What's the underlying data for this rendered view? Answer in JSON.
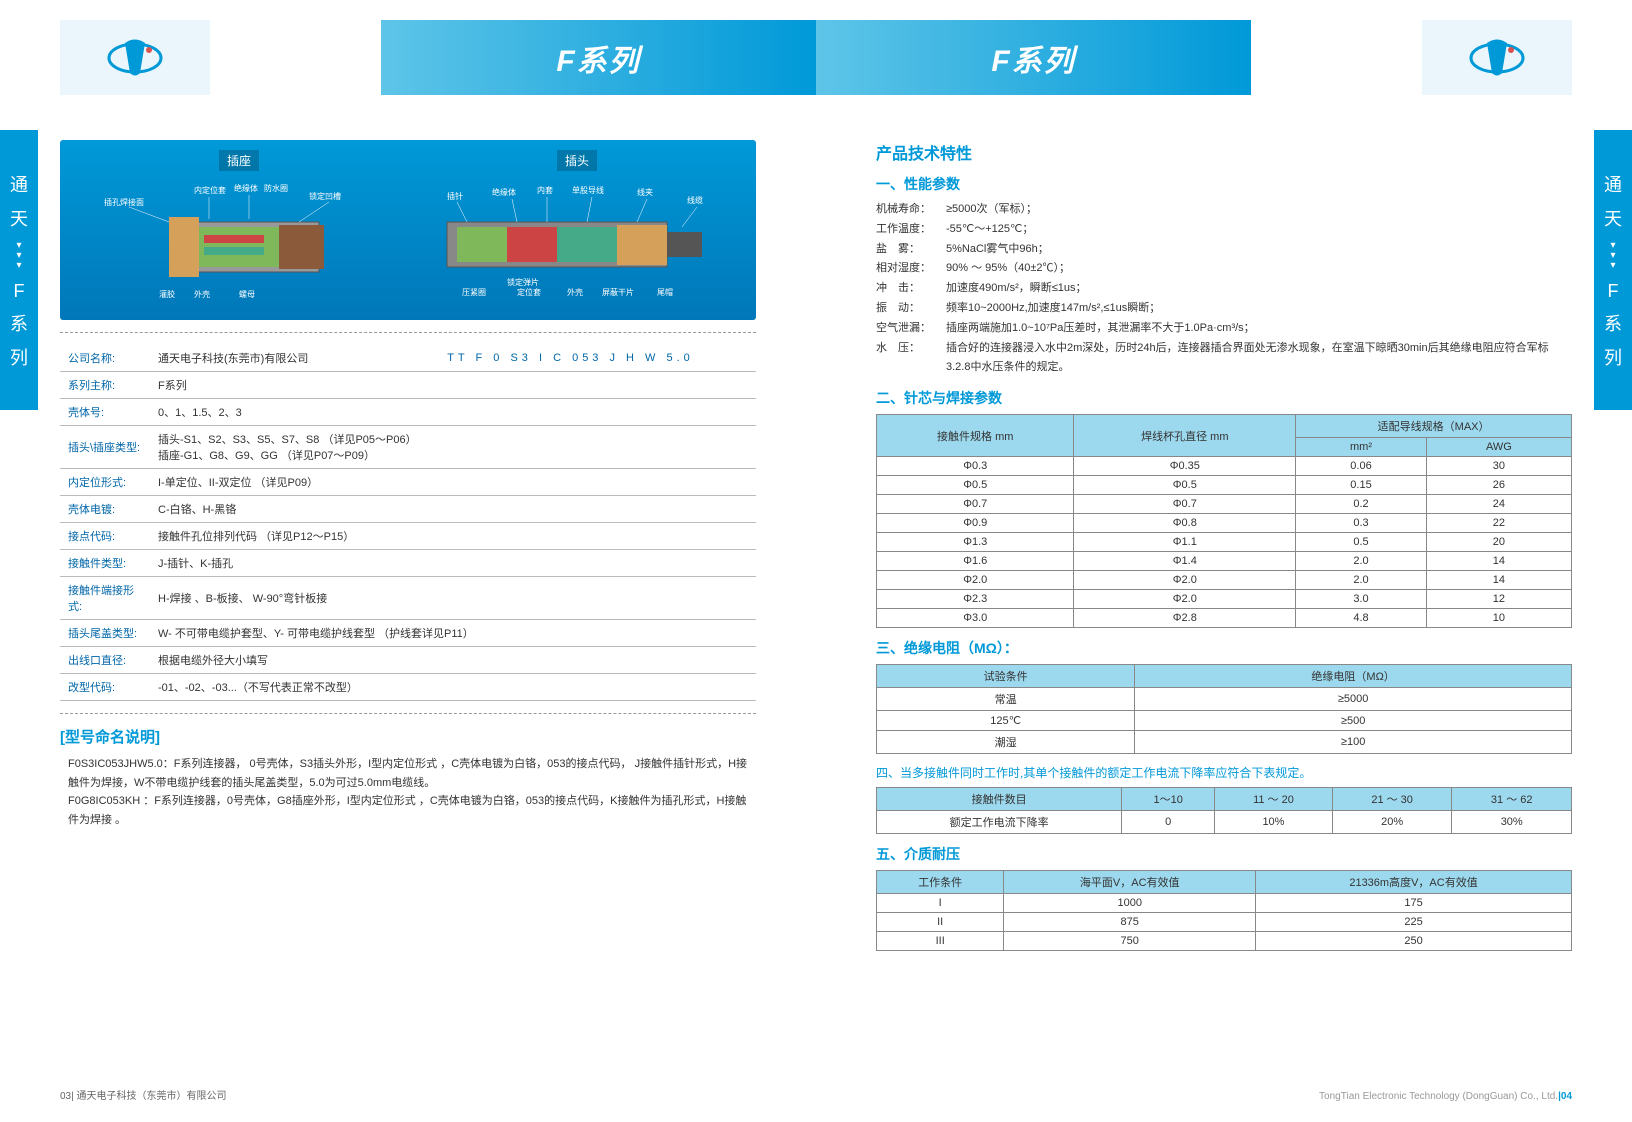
{
  "header": {
    "title_left": "F系列",
    "title_right": "F系列"
  },
  "sidebar": {
    "line1": "通",
    "line2": "天",
    "line3": "F",
    "line4": "系",
    "line5": "列"
  },
  "diagram": {
    "socket_label": "插座",
    "plug_label": "插头",
    "socket_parts": [
      "插孔焊接面",
      "内定位套",
      "绝缘体",
      "防水圈",
      "锁定凹槽",
      "灌胶",
      "外壳",
      "螺母"
    ],
    "plug_parts": [
      "插针",
      "绝缘体",
      "内套",
      "单股导线",
      "线夹",
      "线缆",
      "压紧圈",
      "定位套",
      "外壳",
      "锁定弹片",
      "屏蔽干片",
      "尾帽"
    ]
  },
  "code_bar": "TT  F  0  S3  I   C 053  J   H  W  5.0",
  "spec_rows": [
    {
      "label": "公司名称:",
      "value": "通天电子科技(东莞市)有限公司"
    },
    {
      "label": "系列主称:",
      "value": "F系列"
    },
    {
      "label": "壳体号:",
      "value": "0、1、1.5、2、3"
    },
    {
      "label": "插头\\插座类型:",
      "value": "插头-S1、S2、S3、S5、S7、S8 （详见P05～P06）\n插座-G1、G8、G9、GG （详见P07～P09）"
    },
    {
      "label": "内定位形式:",
      "value": "I-单定位、II-双定位 （详见P09）"
    },
    {
      "label": "壳体电镀:",
      "value": "C-白铬、H-黑铬"
    },
    {
      "label": "接点代码:",
      "value": "接触件孔位排列代码 （详见P12～P15）"
    },
    {
      "label": "接触件类型:",
      "value": "J-插针、K-插孔"
    },
    {
      "label": "接触件端接形式:",
      "value": "H-焊接 、B-板接、 W-90°弯针板接"
    },
    {
      "label": "插头尾盖类型:",
      "value": "W- 不可带电缆护套型、Y- 可带电缆护线套型 （护线套详见P11）"
    },
    {
      "label": "出线口直径:",
      "value": "根据电缆外径大小填写"
    },
    {
      "label": "改型代码:",
      "value": "-01、-02、-03...（不写代表正常不改型）"
    }
  ],
  "naming_title": "[型号命名说明]",
  "examples": [
    {
      "code": "F0S3IC053JHW5.0：",
      "desc": "F系列连接器， 0号壳体，S3插头外形，I型内定位形式 ，C壳体电镀为白铬，053的接点代码， J接触件插针形式，H接触件为焊接，W不带电缆护线套的插头尾盖类型，5.0为可过5.0mm电缆线。"
    },
    {
      "code": "F0G8IC053KH ：",
      "desc": "F系列连接器，0号壳体，G8插座外形，I型内定位形式 ，C壳体电镀为白铬，053的接点代码，K接触件为插孔形式，H接触件为焊接 。"
    }
  ],
  "tech_title": "产品技术特性",
  "sec1_title": "一、性能参数",
  "perf": [
    {
      "l": "机械寿命：",
      "v": "≥5000次（军标）；"
    },
    {
      "l": "工作温度：",
      "v": "-55℃～+125℃；"
    },
    {
      "l": "盐　雾：",
      "v": "5%NaCl雾气中96h；"
    },
    {
      "l": "相对湿度：",
      "v": "90% ～ 95%（40±2℃）；"
    },
    {
      "l": "冲　击：",
      "v": "加速度490m/s²，瞬断≤1us；"
    },
    {
      "l": "振　动：",
      "v": "频率10~2000Hz,加速度147m/s²,≤1us瞬断；"
    },
    {
      "l": "空气泄漏：",
      "v": "插座两端施加1.0~10⁷Pa压差时，其泄漏率不大于1.0Pa·cm³/s；"
    },
    {
      "l": "水　压：",
      "v": "插合好的连接器浸入水中2m深处，历时24h后，连接器插合界面处无渗水现象，在室温下晾晒30min后其绝缘电阻应符合军标3.2.8中水压条件的规定。"
    }
  ],
  "sec2_title": "二、针芯与焊接参数",
  "t2": {
    "headers": {
      "spec": "接触件规格 mm",
      "cup": "焊线杯孔直径 mm",
      "wire": "适配导线规格（MAX）",
      "mm2": "mm²",
      "awg": "AWG"
    },
    "rows": [
      [
        "Φ0.3",
        "Φ0.35",
        "0.06",
        "30"
      ],
      [
        "Φ0.5",
        "Φ0.5",
        "0.15",
        "26"
      ],
      [
        "Φ0.7",
        "Φ0.7",
        "0.2",
        "24"
      ],
      [
        "Φ0.9",
        "Φ0.8",
        "0.3",
        "22"
      ],
      [
        "Φ1.3",
        "Φ1.1",
        "0.5",
        "20"
      ],
      [
        "Φ1.6",
        "Φ1.4",
        "2.0",
        "14"
      ],
      [
        "Φ2.0",
        "Φ2.0",
        "2.0",
        "14"
      ],
      [
        "Φ2.3",
        "Φ2.0",
        "3.0",
        "12"
      ],
      [
        "Φ3.0",
        "Φ2.8",
        "4.8",
        "10"
      ]
    ]
  },
  "sec3_title": "三、绝缘电阻（MΩ）：",
  "t3": {
    "headers": [
      "试验条件",
      "绝缘电阻（MΩ）"
    ],
    "rows": [
      [
        "常温",
        "≥5000"
      ],
      [
        "125℃",
        "≥500"
      ],
      [
        "潮湿",
        "≥100"
      ]
    ]
  },
  "sec4_title": "四、当多接触件同时工作时,其单个接触件的额定工作电流下降率应符合下表规定。",
  "t4": {
    "headers": [
      "接触件数目",
      "1～10",
      "11 ～ 20",
      "21 ～ 30",
      "31 ～ 62"
    ],
    "row": [
      "额定工作电流下降率",
      "0",
      "10%",
      "20%",
      "30%"
    ]
  },
  "sec5_title": "五、介质耐压",
  "t5": {
    "headers": [
      "工作条件",
      "海平面V，AC有效值",
      "21336m高度V，AC有效值"
    ],
    "rows": [
      [
        "I",
        "1000",
        "175"
      ],
      [
        "II",
        "875",
        "225"
      ],
      [
        "III",
        "750",
        "250"
      ]
    ]
  },
  "footer_left": "03| 通天电子科技（东莞市）有限公司",
  "footer_right_text": "TongTian Electronic Technology (DongGuan) Co., Ltd.",
  "footer_right_page": "|04"
}
